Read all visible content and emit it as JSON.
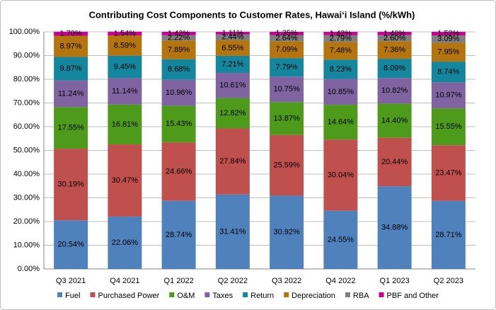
{
  "chart_data": {
    "type": "stacked_bar_percent",
    "title": "Contributing Cost Components to Customer Rates, Hawai‘i Island  (%/kWh)",
    "categories": [
      "Q3 2021",
      "Q4 2021",
      "Q1 2022",
      "Q2 2022",
      "Q3 2022",
      "Q4 2022",
      "Q1 2023",
      "Q2 2023"
    ],
    "ylim": [
      0,
      100
    ],
    "yticks": [
      {
        "value": 0,
        "label": "0.00%"
      },
      {
        "value": 10,
        "label": "10.00%"
      },
      {
        "value": 20,
        "label": "20.00%"
      },
      {
        "value": 30,
        "label": "30.00%"
      },
      {
        "value": 40,
        "label": "40.00%"
      },
      {
        "value": 50,
        "label": "50.00%"
      },
      {
        "value": 60,
        "label": "60.00%"
      },
      {
        "value": 70,
        "label": "70.00%"
      },
      {
        "value": 80,
        "label": "80.00%"
      },
      {
        "value": 90,
        "label": "90.00%"
      },
      {
        "value": 100,
        "label": "100.00%"
      }
    ],
    "grid": true,
    "legend": "bottom",
    "series": [
      {
        "name": "Fuel",
        "color": "#4f81bd",
        "values": [
          20.54,
          22.06,
          28.74,
          31.41,
          30.92,
          24.55,
          34.88,
          28.71
        ],
        "value_labels": [
          "20.54%",
          "22.06%",
          "28.74%",
          "31.41%",
          "30.92%",
          "24.55%",
          "34.88%",
          "28.71%"
        ]
      },
      {
        "name": "Purchased Power",
        "color": "#c0504d",
        "values": [
          30.19,
          30.47,
          24.66,
          27.84,
          25.59,
          30.04,
          20.44,
          23.47
        ],
        "value_labels": [
          "30.19%",
          "30.47%",
          "24.66%",
          "27.84%",
          "25.59%",
          "30.04%",
          "20.44%",
          "23.47%"
        ]
      },
      {
        "name": "O&M",
        "color": "#4e9a1a",
        "values": [
          17.55,
          16.81,
          15.43,
          12.82,
          13.87,
          14.64,
          14.4,
          15.55
        ],
        "value_labels": [
          "17.55%",
          "16.81%",
          "15.43%",
          "12.82%",
          "13.87%",
          "14.64%",
          "14.40%",
          "15.55%"
        ]
      },
      {
        "name": "Taxes",
        "color": "#8064a2",
        "values": [
          11.24,
          11.14,
          10.96,
          10.61,
          10.75,
          10.85,
          10.82,
          10.97
        ],
        "value_labels": [
          "11.24%",
          "11.14%",
          "10.96%",
          "10.61%",
          "10.75%",
          "10.85%",
          "10.82%",
          "10.97%"
        ]
      },
      {
        "name": "Return",
        "color": "#14869e",
        "values": [
          9.87,
          9.45,
          8.68,
          7.21,
          7.79,
          8.23,
          8.09,
          8.74
        ],
        "value_labels": [
          "9.87%",
          "9.45%",
          "8.68%",
          "7.21%",
          "7.79%",
          "8.23%",
          "8.09%",
          "8.74%"
        ]
      },
      {
        "name": "Depreciation",
        "color": "#b4750e",
        "values": [
          8.97,
          8.59,
          7.89,
          6.55,
          7.09,
          7.48,
          7.36,
          7.95
        ],
        "value_labels": [
          "8.97%",
          "8.59%",
          "7.89%",
          "6.55%",
          "7.09%",
          "7.48%",
          "7.36%",
          "7.95%"
        ]
      },
      {
        "name": "RBA",
        "color": "#7f7f7f",
        "values": [
          null,
          null,
          2.22,
          2.44,
          2.64,
          2.79,
          2.6,
          3.09
        ],
        "value_labels": [
          null,
          null,
          "2.22%",
          "2.44%",
          "2.64%",
          "2.79%",
          "2.60%",
          "3.09%"
        ]
      },
      {
        "name": "PBF and Other",
        "color": "#cc0099",
        "values": [
          1.7,
          1.54,
          1.42,
          1.11,
          1.35,
          1.42,
          1.4,
          1.52
        ],
        "value_labels": [
          "1.70%",
          "1.54%",
          "1.42%",
          "1.11%",
          "1.35%",
          "1.42%",
          "1.40%",
          "1.52%"
        ]
      }
    ]
  }
}
